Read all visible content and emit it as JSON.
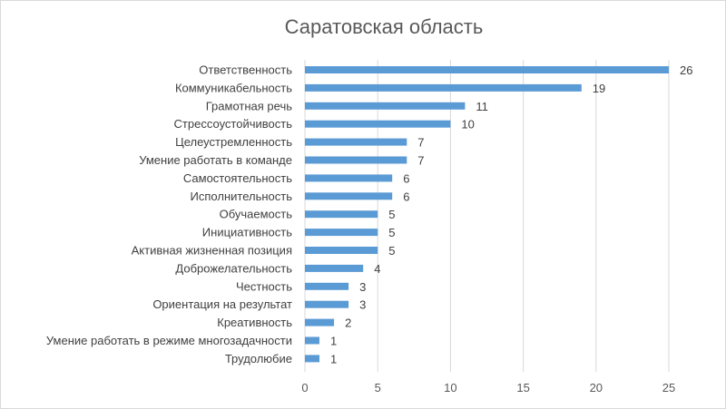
{
  "chart_data": {
    "type": "bar",
    "orientation": "horizontal",
    "title": "Саратовская область",
    "categories": [
      "Ответственность",
      "Коммуникабельность",
      "Грамотная речь",
      "Стрессоустойчивость",
      "Целеустремленность",
      "Умение работать в команде",
      "Самостоятельность",
      "Исполнительность",
      "Обучаемость",
      "Инициативность",
      "Активная жизненная позиция",
      "Доброжелательность",
      "Честность",
      "Ориентация на результат",
      "Креативность",
      "Умение работать в режиме многозадачности",
      "Трудолюбие"
    ],
    "values": [
      26,
      19,
      11,
      10,
      7,
      7,
      6,
      6,
      5,
      5,
      5,
      4,
      3,
      3,
      2,
      1,
      1
    ],
    "xlim": [
      0,
      25
    ],
    "xticks": [
      0,
      5,
      10,
      15,
      20,
      25
    ],
    "grid": true,
    "bar_color": "#5b9bd5",
    "legend": "none"
  }
}
